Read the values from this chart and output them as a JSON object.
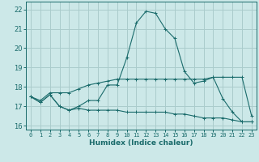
{
  "title": "",
  "xlabel": "Humidex (Indice chaleur)",
  "ylabel": "",
  "bg_color": "#cce8e8",
  "line_color": "#1a6b6b",
  "grid_color": "#aacccc",
  "x": [
    0,
    1,
    2,
    3,
    4,
    5,
    6,
    7,
    8,
    9,
    10,
    11,
    12,
    13,
    14,
    15,
    16,
    17,
    18,
    19,
    20,
    21,
    22,
    23
  ],
  "y_main": [
    17.5,
    17.2,
    17.6,
    17.0,
    16.8,
    17.0,
    17.3,
    17.3,
    18.1,
    18.1,
    19.5,
    21.3,
    21.9,
    21.8,
    21.0,
    20.5,
    18.8,
    18.2,
    18.3,
    18.5,
    17.4,
    16.7,
    16.2,
    16.2
  ],
  "y_upper": [
    17.5,
    17.3,
    17.7,
    17.7,
    17.7,
    17.9,
    18.1,
    18.2,
    18.3,
    18.4,
    18.4,
    18.4,
    18.4,
    18.4,
    18.4,
    18.4,
    18.4,
    18.4,
    18.4,
    18.5,
    18.5,
    18.5,
    18.5,
    16.5
  ],
  "y_lower": [
    17.5,
    17.2,
    17.6,
    17.0,
    16.8,
    16.9,
    16.8,
    16.8,
    16.8,
    16.8,
    16.7,
    16.7,
    16.7,
    16.7,
    16.7,
    16.6,
    16.6,
    16.5,
    16.4,
    16.4,
    16.4,
    16.3,
    16.2,
    16.2
  ],
  "ylim": [
    15.8,
    22.4
  ],
  "yticks": [
    16,
    17,
    18,
    19,
    20,
    21,
    22
  ],
  "xlim": [
    -0.5,
    23.5
  ],
  "xticks": [
    0,
    1,
    2,
    3,
    4,
    5,
    6,
    7,
    8,
    9,
    10,
    11,
    12,
    13,
    14,
    15,
    16,
    17,
    18,
    19,
    20,
    21,
    22,
    23
  ]
}
